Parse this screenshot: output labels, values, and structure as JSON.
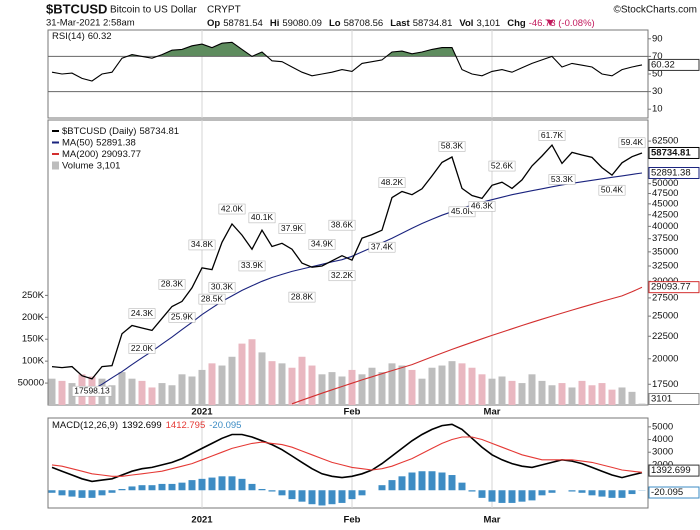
{
  "header": {
    "symbol": "$BTCUSD",
    "name": "Bitcoin to US Dollar",
    "exchange": "CRYPT",
    "copyright": "©StockCharts.com",
    "date": "31-Mar-2021 2:58am",
    "quote": [
      {
        "label": "Op",
        "text": "58781.54"
      },
      {
        "label": "Hi",
        "text": "59080.09"
      },
      {
        "label": "Lo",
        "text": "58708.56"
      },
      {
        "label": "Last",
        "text": "58734.81"
      },
      {
        "label": "Vol",
        "text": "3,101"
      },
      {
        "label": "Chg",
        "text": "-46.73 (-0.08%)",
        "color": "#c2185b"
      }
    ]
  },
  "chart_data": [
    {
      "type": "line",
      "name": "RSI(14)",
      "color": "#000000",
      "fill_color": "#5e8c5e",
      "ylim": [
        0,
        100
      ],
      "yticks": [
        10,
        30,
        50,
        70,
        90
      ],
      "reference_lines": [
        30,
        70
      ],
      "values": [
        52,
        50,
        51,
        45,
        42,
        50,
        52,
        68,
        72,
        70,
        68,
        72,
        77,
        78,
        82,
        84,
        80,
        85,
        86,
        78,
        70,
        75,
        65,
        64,
        58,
        52,
        48,
        50,
        52,
        55,
        53,
        62,
        64,
        66,
        75,
        76,
        73,
        75,
        78,
        80,
        80,
        55,
        50,
        48,
        53,
        55,
        52,
        57,
        62,
        66,
        70,
        58,
        62,
        60,
        58,
        50,
        48,
        55,
        58,
        60.32
      ]
    },
    {
      "type": "line",
      "log_scale": true,
      "x_grid": true,
      "legend": "top-left",
      "categories": [
        null,
        null,
        null,
        null,
        null,
        null,
        null,
        null,
        null,
        null,
        null,
        null,
        null,
        null,
        null,
        "2021",
        null,
        null,
        null,
        null,
        null,
        null,
        null,
        null,
        null,
        null,
        null,
        null,
        null,
        null,
        "Feb",
        null,
        null,
        null,
        null,
        null,
        null,
        null,
        null,
        null,
        null,
        null,
        null,
        null,
        "Mar",
        null,
        null,
        null,
        null,
        null,
        null,
        null,
        null,
        null,
        null,
        null,
        null,
        null,
        null,
        null
      ],
      "ylim": [
        15700,
        69800
      ],
      "yticks": [
        17500,
        20000,
        22500,
        25000,
        27500,
        30000,
        32500,
        35000,
        37500,
        40000,
        42500,
        45000,
        47500,
        50000,
        62500
      ],
      "series": [
        {
          "name": "$BTCUSD (Daily)",
          "color": "#000000",
          "values": [
            19200,
            19100,
            19200,
            18300,
            18000,
            19200,
            19300,
            22800,
            23800,
            23500,
            23200,
            24700,
            26300,
            27000,
            29000,
            32200,
            31900,
            36800,
            40500,
            38200,
            35500,
            39200,
            36000,
            36600,
            35500,
            33000,
            32300,
            32500,
            33400,
            34300,
            33500,
            37600,
            38300,
            39200,
            46500,
            48000,
            47200,
            48700,
            52100,
            55900,
            57500,
            48800,
            47000,
            46300,
            49600,
            50400,
            48800,
            51000,
            54900,
            57800,
            61200,
            55600,
            58900,
            58100,
            57400,
            54400,
            52300,
            55800,
            57600,
            58734.81
          ]
        },
        {
          "name": "MA(50)",
          "color": "#1a237e",
          "values": [
            null,
            null,
            null,
            null,
            17000,
            17500,
            18100,
            18700,
            19400,
            20100,
            20800,
            21600,
            22400,
            23300,
            24200,
            25200,
            26100,
            27000,
            27800,
            28600,
            29300,
            30000,
            30600,
            31100,
            31600,
            32000,
            32400,
            32800,
            33200,
            33600,
            34200,
            35000,
            35800,
            36700,
            37600,
            38600,
            39600,
            40600,
            41500,
            42400,
            43200,
            44000,
            44700,
            45400,
            46000,
            46600,
            47200,
            47700,
            48200,
            48700,
            49200,
            49700,
            50100,
            50500,
            50900,
            51300,
            51700,
            52100,
            52500,
            52891.38
          ]
        },
        {
          "name": "MA(200)",
          "color": "#d32f2f",
          "values": [
            null,
            null,
            null,
            null,
            null,
            null,
            null,
            null,
            null,
            null,
            null,
            null,
            null,
            null,
            null,
            null,
            null,
            null,
            null,
            null,
            null,
            null,
            null,
            null,
            15800,
            16100,
            16400,
            16700,
            17000,
            17300,
            17600,
            17900,
            18200,
            18500,
            18800,
            19100,
            19400,
            19800,
            20200,
            20600,
            21000,
            21400,
            21800,
            22200,
            22600,
            23000,
            23400,
            23800,
            24200,
            24600,
            25000,
            25400,
            25800,
            26200,
            26600,
            27000,
            27400,
            27800,
            28400,
            29093.77
          ]
        }
      ],
      "high_labels": {
        "values": [
          null,
          null,
          null,
          null,
          null,
          null,
          null,
          null,
          null,
          24300,
          null,
          null,
          28300,
          null,
          null,
          34800,
          null,
          null,
          42000,
          null,
          null,
          40100,
          null,
          null,
          37900,
          null,
          null,
          34900,
          null,
          38600,
          null,
          null,
          null,
          null,
          48200,
          null,
          null,
          null,
          null,
          null,
          58300,
          null,
          null,
          null,
          null,
          52600,
          null,
          null,
          null,
          null,
          61700,
          null,
          null,
          null,
          null,
          null,
          null,
          null,
          59400,
          null
        ],
        "value_labels": [
          null,
          null,
          null,
          null,
          null,
          null,
          null,
          null,
          null,
          "24.3K",
          null,
          null,
          "28.3K",
          null,
          null,
          "34.8K",
          null,
          null,
          "42.0K",
          null,
          null,
          "40.1K",
          null,
          null,
          "37.9K",
          null,
          null,
          "34.9K",
          null,
          "38.6K",
          null,
          null,
          null,
          null,
          "48.2K",
          null,
          null,
          null,
          null,
          null,
          "58.3K",
          null,
          null,
          null,
          null,
          "52.6K",
          null,
          null,
          null,
          null,
          "61.7K",
          null,
          null,
          null,
          null,
          null,
          null,
          null,
          "59.4K",
          null
        ]
      },
      "low_labels": {
        "values": [
          null,
          null,
          null,
          null,
          17598.13,
          null,
          null,
          null,
          null,
          22000,
          null,
          null,
          null,
          25900,
          null,
          null,
          28500,
          30300,
          null,
          null,
          33900,
          null,
          null,
          null,
          null,
          28800,
          null,
          null,
          null,
          32200,
          null,
          null,
          null,
          37400,
          null,
          null,
          null,
          null,
          null,
          null,
          null,
          45000,
          null,
          46300,
          null,
          null,
          null,
          null,
          null,
          null,
          null,
          53300,
          null,
          null,
          null,
          null,
          50400,
          null,
          null,
          null
        ],
        "value_labels": [
          null,
          null,
          null,
          null,
          "17598.13",
          null,
          null,
          null,
          null,
          "22.0K",
          null,
          null,
          null,
          "25.9K",
          null,
          null,
          "28.5K",
          "30.3K",
          null,
          null,
          "33.9K",
          null,
          null,
          null,
          null,
          "28.8K",
          null,
          null,
          null,
          "32.2K",
          null,
          null,
          null,
          "37.4K",
          null,
          null,
          null,
          null,
          null,
          null,
          null,
          "45.0K",
          null,
          "46.3K",
          null,
          null,
          null,
          null,
          null,
          null,
          null,
          "53.3K",
          null,
          null,
          null,
          null,
          "50.4K",
          null,
          null,
          null
        ]
      },
      "y2lim": [
        0,
        650000
      ],
      "y2ticks": [
        50000,
        {
          "value": 100000,
          "label": "100K"
        },
        {
          "value": 150000,
          "label": "150K"
        },
        {
          "value": 200000,
          "label": "200K"
        },
        {
          "value": 250000,
          "label": "250K"
        }
      ],
      "volume": {
        "name": "Volume",
        "axis": "y2",
        "color": "#bdbdbd",
        "down_color": "#e9b7c0",
        "last_label": "3,101",
        "values": [
          60000,
          55000,
          50000,
          70000,
          65000,
          60000,
          45000,
          75000,
          60000,
          55000,
          40000,
          50000,
          45000,
          70000,
          65000,
          80000,
          95000,
          90000,
          110000,
          140000,
          150000,
          120000,
          100000,
          95000,
          85000,
          110000,
          90000,
          70000,
          75000,
          65000,
          80000,
          70000,
          85000,
          75000,
          95000,
          90000,
          80000,
          60000,
          85000,
          90000,
          100000,
          95000,
          85000,
          70000,
          60000,
          65000,
          55000,
          50000,
          70000,
          55000,
          45000,
          50000,
          40000,
          55000,
          45000,
          50000,
          35000,
          40000,
          30000,
          3101
        ]
      }
    },
    {
      "type": "line",
      "name": "MACD(12,26,9)",
      "ylim": [
        -1400,
        5700
      ],
      "yticks": [
        2000,
        3000,
        4000,
        5000
      ],
      "series": [
        {
          "color": "#000000",
          "values": [
            1800,
            1500,
            1200,
            900,
            700,
            800,
            900,
            1200,
            1500,
            1700,
            1800,
            2000,
            2200,
            2500,
            2900,
            3300,
            3700,
            4100,
            4400,
            4400,
            4200,
            3900,
            3600,
            3200,
            2700,
            2200,
            1700,
            1300,
            1100,
            1000,
            1100,
            1300,
            1600,
            2100,
            2700,
            3300,
            3900,
            4400,
            4800,
            5100,
            5200,
            4800,
            4100,
            3400,
            2800,
            2400,
            2100,
            1900,
            1800,
            2000,
            2200,
            2400,
            2300,
            2100,
            1800,
            1500,
            1200,
            1000,
            1200,
            1392.699
          ]
        },
        {
          "color": "#e53935",
          "values": [
            2000,
            1900,
            1700,
            1500,
            1300,
            1200,
            1100,
            1100,
            1200,
            1300,
            1400,
            1500,
            1700,
            1900,
            2100,
            2400,
            2700,
            3000,
            3300,
            3500,
            3700,
            3800,
            3700,
            3600,
            3400,
            3100,
            2800,
            2500,
            2200,
            2000,
            1800,
            1700,
            1600,
            1700,
            1900,
            2200,
            2500,
            2900,
            3300,
            3700,
            4000,
            4200,
            4200,
            4000,
            3700,
            3400,
            3100,
            2800,
            2600,
            2400,
            2400,
            2400,
            2400,
            2300,
            2200,
            2000,
            1800,
            1600,
            1500,
            1412.795
          ]
        }
      ],
      "histogram": {
        "color": "#3d8cc4",
        "values": [
          -200,
          -400,
          -500,
          -600,
          -600,
          -400,
          -200,
          100,
          300,
          400,
          400,
          500,
          500,
          600,
          800,
          900,
          1000,
          1100,
          1100,
          900,
          500,
          100,
          -100,
          -400,
          -700,
          -900,
          -1100,
          -1200,
          -1100,
          -1000,
          -700,
          -400,
          0,
          400,
          800,
          1100,
          1400,
          1500,
          1500,
          1400,
          1200,
          600,
          -100,
          -600,
          -900,
          -1000,
          -1000,
          -900,
          -800,
          -400,
          -200,
          0,
          -100,
          -200,
          -400,
          -500,
          -600,
          -600,
          -300,
          -20.095
        ]
      }
    }
  ]
}
